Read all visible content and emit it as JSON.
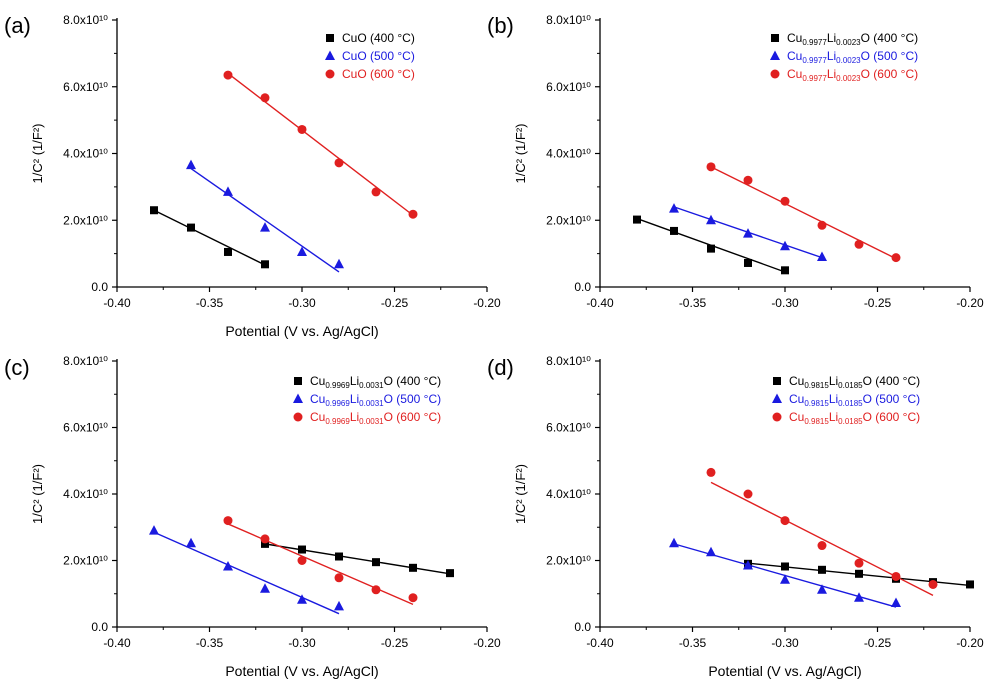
{
  "figure": {
    "panels_count": 4
  },
  "chart_data": [
    {
      "panel": "(a)",
      "type": "scatter",
      "xlabel": "Potential (V vs. Ag/AgCl)",
      "ylabel": "1/C² (1/F²)",
      "xlim": [
        -0.4,
        -0.2
      ],
      "ylim": [
        0,
        80000000000.0
      ],
      "xticks": [
        "-0.40",
        "-0.35",
        "-0.30",
        "-0.25",
        "-0.20"
      ],
      "yticks": [
        "0.0",
        "2.0x10¹⁰",
        "4.0x10¹⁰",
        "6.0x10¹⁰",
        "8.0x10¹⁰"
      ],
      "grid": false,
      "legend_position": "top-right",
      "series": [
        {
          "name": "CuO (400 °C)",
          "marker": "square",
          "color": "#000000",
          "x": [
            -0.38,
            -0.36,
            -0.34,
            -0.32
          ],
          "y": [
            23000000000.0,
            17800000000.0,
            10500000000.0,
            6800000000.0
          ],
          "fit": [
            [
              -0.38,
              23000000000.0
            ],
            [
              -0.32,
              6600000000.0
            ]
          ]
        },
        {
          "name": "CuO (500 °C)",
          "marker": "triangle",
          "color": "#1a1adf",
          "x": [
            -0.36,
            -0.34,
            -0.32,
            -0.3,
            -0.28
          ],
          "y": [
            36500000000.0,
            28500000000.0,
            17800000000.0,
            10500000000.0,
            6800000000.0
          ],
          "fit": [
            [
              -0.36,
              35500000000.0
            ],
            [
              -0.28,
              4500000000.0
            ]
          ]
        },
        {
          "name": "CuO (600 °C)",
          "marker": "circle",
          "color": "#e02020",
          "x": [
            -0.34,
            -0.32,
            -0.3,
            -0.28,
            -0.26,
            -0.24
          ],
          "y": [
            63500000000.0,
            56700000000.0,
            47200000000.0,
            37200000000.0,
            28500000000.0,
            21800000000.0
          ],
          "fit": [
            [
              -0.34,
              64000000000.0
            ],
            [
              -0.24,
              21500000000.0
            ]
          ]
        }
      ]
    },
    {
      "panel": "(b)",
      "type": "scatter",
      "xlabel": "",
      "ylabel": "1/C² (1/F²)",
      "xlim": [
        -0.4,
        -0.2
      ],
      "ylim": [
        0,
        80000000000.0
      ],
      "xticks": [
        "-0.40",
        "-0.35",
        "-0.30",
        "-0.25",
        "-0.20"
      ],
      "yticks": [
        "0.0",
        "2.0x10¹⁰",
        "4.0x10¹⁰",
        "6.0x10¹⁰",
        "8.0x10¹⁰"
      ],
      "grid": false,
      "legend_position": "top-right",
      "series": [
        {
          "name": "Cu0.9977Li0.0023O (400 °C)",
          "marker": "square",
          "color": "#000000",
          "x": [
            -0.38,
            -0.36,
            -0.34,
            -0.32,
            -0.3
          ],
          "y": [
            20200000000.0,
            16800000000.0,
            11500000000.0,
            7200000000.0,
            5000000000.0
          ],
          "fit": [
            [
              -0.38,
              20500000000.0
            ],
            [
              -0.3,
              4500000000.0
            ]
          ]
        },
        {
          "name": "Cu0.9977Li0.0023O (500 °C)",
          "marker": "triangle",
          "color": "#1a1adf",
          "x": [
            -0.36,
            -0.34,
            -0.32,
            -0.3,
            -0.28
          ],
          "y": [
            23500000000.0,
            20000000000.0,
            16000000000.0,
            12200000000.0,
            9000000000.0
          ],
          "fit": [
            [
              -0.36,
              24000000000.0
            ],
            [
              -0.28,
              8800000000.0
            ]
          ]
        },
        {
          "name": "Cu0.9977Li0.0023O (600 °C)",
          "marker": "circle",
          "color": "#e02020",
          "x": [
            -0.34,
            -0.32,
            -0.3,
            -0.28,
            -0.26,
            -0.24
          ],
          "y": [
            36000000000.0,
            32000000000.0,
            25700000000.0,
            18500000000.0,
            12800000000.0,
            8800000000.0
          ],
          "fit": [
            [
              -0.34,
              36000000000.0
            ],
            [
              -0.24,
              8500000000.0
            ]
          ]
        }
      ]
    },
    {
      "panel": "(c)",
      "type": "scatter",
      "xlabel": "Potential (V vs. Ag/AgCl)",
      "ylabel": "1/C² (1/F²)",
      "xlim": [
        -0.4,
        -0.2
      ],
      "ylim": [
        0,
        80000000000.0
      ],
      "xticks": [
        "-0.40",
        "-0.35",
        "-0.30",
        "-0.25",
        "-0.20"
      ],
      "yticks": [
        "0.0",
        "2.0x10¹⁰",
        "4.0x10¹⁰",
        "6.0x10¹⁰",
        "8.0x10¹⁰"
      ],
      "grid": false,
      "legend_position": "top-right",
      "series": [
        {
          "name": "Cu0.9969Li0.0031O (400 °C)",
          "marker": "square",
          "color": "#000000",
          "x": [
            -0.32,
            -0.3,
            -0.28,
            -0.26,
            -0.24,
            -0.22
          ],
          "y": [
            25000000000.0,
            23300000000.0,
            21200000000.0,
            19500000000.0,
            17800000000.0,
            16200000000.0
          ],
          "fit": [
            [
              -0.32,
              25000000000.0
            ],
            [
              -0.22,
              16000000000.0
            ]
          ]
        },
        {
          "name": "Cu0.9969Li0.0031O (500 °C)",
          "marker": "triangle",
          "color": "#1a1adf",
          "x": [
            -0.38,
            -0.36,
            -0.34,
            -0.32,
            -0.3,
            -0.28
          ],
          "y": [
            29000000000.0,
            25200000000.0,
            18200000000.0,
            11500000000.0,
            8200000000.0,
            6200000000.0
          ],
          "fit": [
            [
              -0.38,
              28500000000.0
            ],
            [
              -0.28,
              4000000000.0
            ]
          ]
        },
        {
          "name": "Cu0.9969Li0.0031O (600 °C)",
          "marker": "circle",
          "color": "#e02020",
          "x": [
            -0.34,
            -0.32,
            -0.3,
            -0.28,
            -0.26,
            -0.24
          ],
          "y": [
            32000000000.0,
            26500000000.0,
            20000000000.0,
            14800000000.0,
            11200000000.0,
            8800000000.0
          ],
          "fit": [
            [
              -0.34,
              31000000000.0
            ],
            [
              -0.24,
              6800000000.0
            ]
          ]
        }
      ]
    },
    {
      "panel": "(d)",
      "type": "scatter",
      "xlabel": "Potential (V vs. Ag/AgCl)",
      "ylabel": "1/C² (1/F²)",
      "xlim": [
        -0.4,
        -0.2
      ],
      "ylim": [
        0,
        80000000000.0
      ],
      "xticks": [
        "-0.40",
        "-0.35",
        "-0.30",
        "-0.25",
        "-0.20"
      ],
      "yticks": [
        "0.0",
        "2.0x10¹⁰",
        "4.0x10¹⁰",
        "6.0x10¹⁰",
        "8.0x10¹⁰"
      ],
      "grid": false,
      "legend_position": "top-right",
      "series": [
        {
          "name": "Cu0.9815Li0.0185O (400 °C)",
          "marker": "square",
          "color": "#000000",
          "x": [
            -0.32,
            -0.3,
            -0.28,
            -0.26,
            -0.24,
            -0.22,
            -0.2
          ],
          "y": [
            19000000000.0,
            18200000000.0,
            17200000000.0,
            16000000000.0,
            14500000000.0,
            13500000000.0,
            12800000000.0
          ],
          "fit": [
            [
              -0.32,
              19200000000.0
            ],
            [
              -0.2,
              12500000000.0
            ]
          ]
        },
        {
          "name": "Cu0.9815Li0.0185O (500 °C)",
          "marker": "triangle",
          "color": "#1a1adf",
          "x": [
            -0.36,
            -0.34,
            -0.32,
            -0.3,
            -0.28,
            -0.26,
            -0.24
          ],
          "y": [
            25200000000.0,
            22500000000.0,
            18500000000.0,
            14200000000.0,
            11200000000.0,
            8800000000.0,
            7200000000.0
          ],
          "fit": [
            [
              -0.36,
              25000000000.0
            ],
            [
              -0.24,
              6000000000.0
            ]
          ]
        },
        {
          "name": "Cu0.9815Li0.0185O (600 °C)",
          "marker": "circle",
          "color": "#e02020",
          "x": [
            -0.34,
            -0.32,
            -0.3,
            -0.28,
            -0.26,
            -0.24,
            -0.22
          ],
          "y": [
            46500000000.0,
            40000000000.0,
            32000000000.0,
            24500000000.0,
            19200000000.0,
            15200000000.0,
            12800000000.0
          ],
          "fit": [
            [
              -0.34,
              43500000000.0
            ],
            [
              -0.22,
              9500000000.0
            ]
          ]
        }
      ]
    }
  ]
}
